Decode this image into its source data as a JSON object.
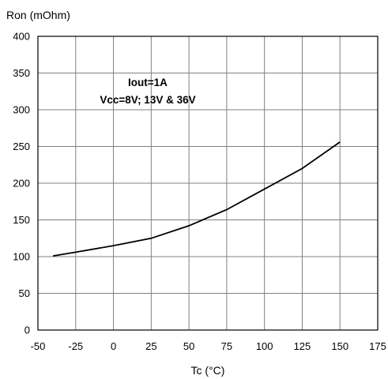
{
  "chart_data": {
    "type": "line",
    "title": "",
    "ylabel": "Ron (mOhm)",
    "xlabel": "Tc (°C)",
    "xlim": [
      -50,
      175
    ],
    "ylim": [
      0,
      400
    ],
    "xticks": [
      -50,
      -25,
      0,
      25,
      50,
      75,
      100,
      125,
      150,
      175
    ],
    "yticks": [
      0,
      50,
      100,
      150,
      200,
      250,
      300,
      350,
      400
    ],
    "grid": true,
    "annotations": [
      "Iout=1A",
      "Vcc=8V; 13V & 36V"
    ],
    "series": [
      {
        "color": "#000000",
        "x": [
          -40,
          -25,
          0,
          25,
          50,
          75,
          100,
          125,
          150
        ],
        "y": [
          101,
          106,
          115,
          125,
          142,
          164,
          192,
          220,
          256
        ]
      }
    ]
  }
}
